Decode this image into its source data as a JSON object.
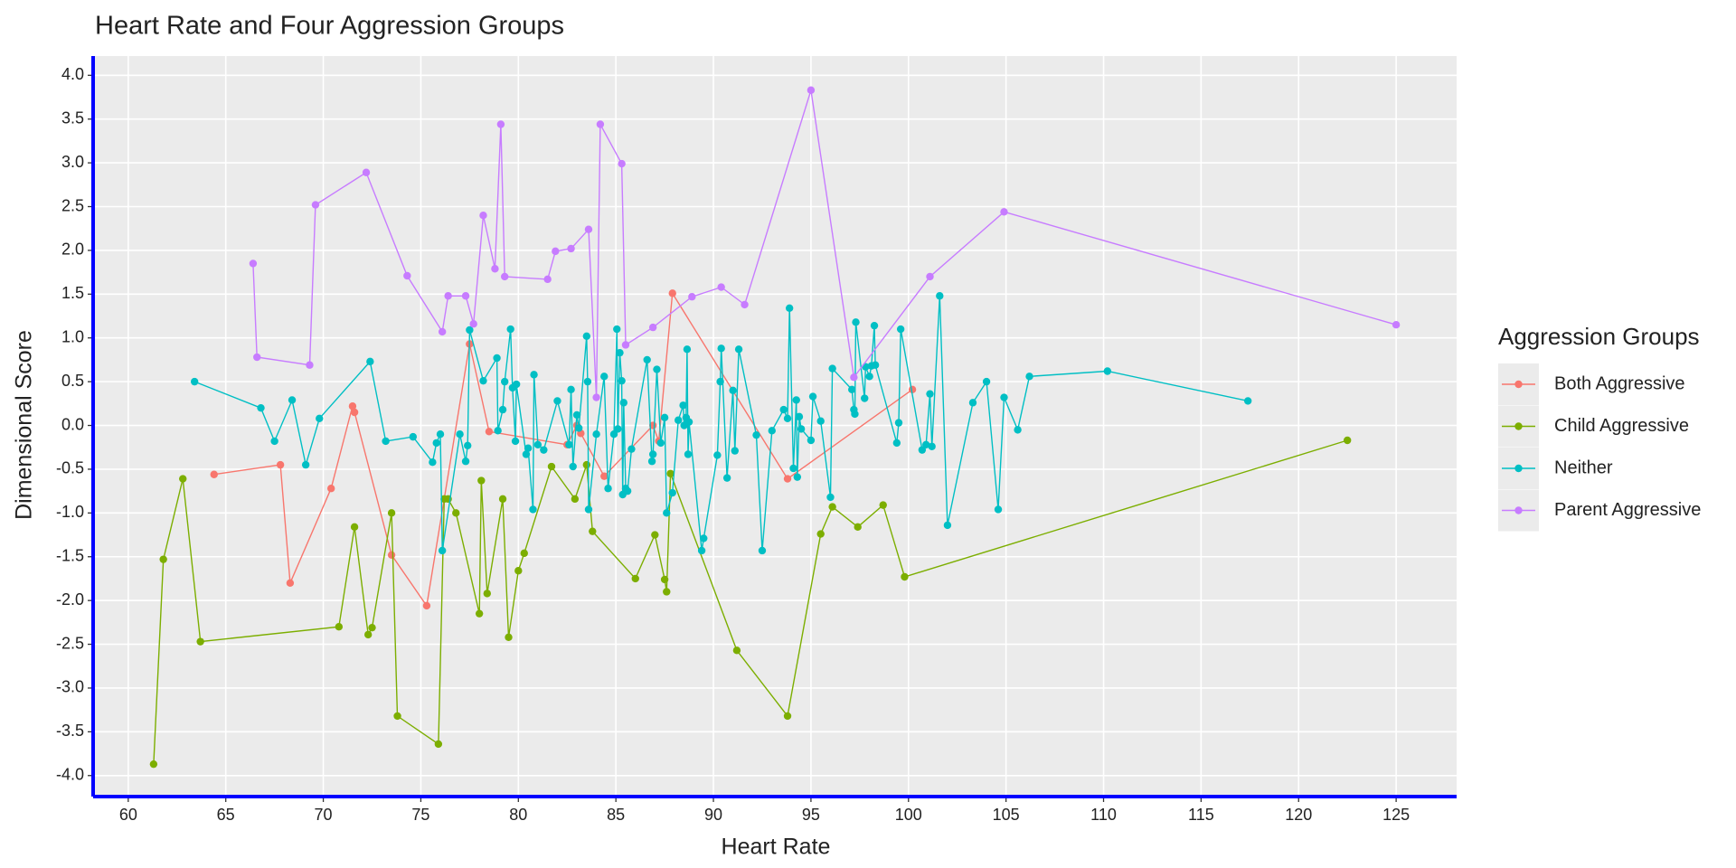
{
  "chart_data": {
    "type": "line",
    "title": "Heart Rate and Four Aggression Groups",
    "x_label": "Heart Rate",
    "y_label": "Dimensional Score",
    "legend_title": "Aggression Groups",
    "legend_position": "right",
    "xlim": [
      58.2,
      128.1
    ],
    "ylim": [
      -4.24,
      4.22
    ],
    "xticks": [
      60,
      65,
      70,
      75,
      80,
      85,
      90,
      95,
      100,
      105,
      110,
      115,
      120,
      125
    ],
    "yticks": [
      {
        "value": -4,
        "label": "-4.0"
      },
      -3.5,
      {
        "value": -3,
        "label": "-3.0"
      },
      -2.5,
      {
        "value": -2,
        "label": "-2.0"
      },
      -1.5,
      {
        "value": -1,
        "label": "-1.0"
      },
      -0.5,
      {
        "value": 0,
        "label": "0.0"
      },
      0.5,
      {
        "value": 1,
        "label": "1.0"
      },
      1.5,
      {
        "value": 2,
        "label": "2.0"
      },
      2.5,
      {
        "value": 3,
        "label": "3.0"
      },
      3.5,
      {
        "value": 4,
        "label": "4.0"
      }
    ],
    "grid": true,
    "axis_line_color": "#0000ff",
    "series": [
      {
        "name": "Both Aggressive",
        "color": "#F8766D",
        "x": [
          64.4,
          67.8,
          68.3,
          70.4,
          71.5,
          71.6,
          73.5,
          75.3,
          77.5,
          78.5,
          82.5,
          83.0,
          83.2,
          84.4,
          86.9,
          87.2,
          87.9,
          93.8,
          100.2
        ],
        "values": [
          -0.56,
          -0.45,
          -1.8,
          -0.72,
          0.22,
          0.15,
          -1.48,
          -2.06,
          0.93,
          -0.07,
          -0.22,
          0.0,
          -0.09,
          -0.58,
          0.0,
          -0.18,
          1.51,
          -0.61,
          0.41
        ]
      },
      {
        "name": "Child Aggressive",
        "color": "#7CAE00",
        "x": [
          61.3,
          61.8,
          62.8,
          63.7,
          70.8,
          71.6,
          72.3,
          72.5,
          73.5,
          73.8,
          75.9,
          76.2,
          76.4,
          76.8,
          78.0,
          78.1,
          78.4,
          79.2,
          79.5,
          80.0,
          80.3,
          81.7,
          82.9,
          83.5,
          83.8,
          86.0,
          87.0,
          87.5,
          87.6,
          87.8,
          91.2,
          93.8,
          95.5,
          96.1,
          97.4,
          98.7,
          99.8,
          122.5
        ],
        "values": [
          -3.87,
          -1.53,
          -0.61,
          -2.47,
          -2.3,
          -1.16,
          -2.39,
          -2.31,
          -1.0,
          -3.32,
          -3.64,
          -0.84,
          -0.84,
          -1.0,
          -2.15,
          -0.63,
          -1.92,
          -0.84,
          -2.42,
          -1.66,
          -1.46,
          -0.47,
          -0.84,
          -0.45,
          -1.21,
          -1.75,
          -1.25,
          -1.76,
          -1.9,
          -0.55,
          -2.57,
          -3.32,
          -1.24,
          -0.93,
          -1.16,
          -0.91,
          -1.73,
          -0.17
        ]
      },
      {
        "name": "Neither",
        "color": "#00BFC4",
        "x": [
          63.4,
          66.8,
          67.5,
          68.4,
          69.1,
          69.8,
          72.4,
          73.2,
          74.6,
          75.6,
          75.8,
          76.0,
          76.1,
          77.0,
          77.3,
          77.4,
          77.5,
          78.2,
          78.9,
          78.95,
          79.2,
          79.3,
          79.6,
          79.7,
          79.85,
          79.9,
          80.4,
          80.5,
          80.75,
          80.8,
          81.0,
          81.3,
          82.0,
          82.6,
          82.7,
          82.8,
          83.0,
          83.1,
          83.5,
          83.55,
          83.6,
          84.0,
          84.4,
          84.6,
          84.9,
          85.05,
          85.1,
          85.2,
          85.3,
          85.35,
          85.4,
          85.5,
          85.6,
          85.8,
          86.6,
          86.85,
          86.9,
          87.1,
          87.3,
          87.5,
          87.6,
          87.9,
          88.2,
          88.45,
          88.5,
          88.6,
          88.65,
          88.7,
          88.75,
          89.4,
          89.5,
          90.2,
          90.35,
          90.4,
          90.7,
          91.0,
          91.1,
          91.3,
          92.2,
          92.5,
          93.0,
          93.6,
          93.8,
          93.9,
          94.1,
          94.25,
          94.3,
          94.4,
          94.5,
          95.0,
          95.1,
          95.5,
          96.0,
          96.1,
          97.1,
          97.2,
          97.25,
          97.3,
          97.75,
          97.8,
          98.0,
          98.1,
          98.25,
          98.3,
          99.4,
          99.5,
          99.6,
          100.7,
          100.9,
          101.1,
          101.2,
          101.6,
          102.0,
          103.3,
          104.0,
          104.6,
          104.9,
          105.6,
          106.2,
          110.2,
          117.4
        ],
        "values": [
          0.5,
          0.2,
          -0.18,
          0.29,
          -0.45,
          0.08,
          0.73,
          -0.18,
          -0.13,
          -0.42,
          -0.2,
          -0.1,
          -1.43,
          -0.1,
          -0.41,
          -0.23,
          1.09,
          0.51,
          0.77,
          -0.06,
          0.18,
          0.5,
          1.1,
          0.43,
          -0.18,
          0.47,
          -0.33,
          -0.26,
          -0.96,
          0.58,
          -0.22,
          -0.28,
          0.28,
          -0.22,
          0.41,
          -0.47,
          0.12,
          -0.03,
          1.02,
          0.5,
          -0.96,
          -0.1,
          0.56,
          -0.72,
          -0.1,
          1.1,
          -0.04,
          0.83,
          0.51,
          -0.79,
          0.26,
          -0.72,
          -0.75,
          -0.27,
          0.75,
          -0.41,
          -0.33,
          0.64,
          -0.2,
          0.09,
          -1.0,
          -0.77,
          0.06,
          0.23,
          0.0,
          0.09,
          0.87,
          -0.33,
          0.04,
          -1.43,
          -1.29,
          -0.34,
          0.5,
          0.88,
          -0.6,
          0.4,
          -0.29,
          0.87,
          -0.11,
          -1.43,
          -0.06,
          0.18,
          0.08,
          1.34,
          -0.49,
          0.29,
          -0.59,
          0.1,
          -0.04,
          -0.17,
          0.33,
          0.05,
          -0.82,
          0.65,
          0.41,
          0.18,
          0.13,
          1.18,
          0.31,
          0.67,
          0.56,
          0.68,
          1.14,
          0.69,
          -0.2,
          0.03,
          1.1,
          -0.28,
          -0.22,
          0.36,
          -0.24,
          1.48,
          -1.14,
          0.26,
          0.5,
          -0.96,
          0.32,
          -0.05,
          0.56,
          0.62,
          0.28
        ]
      },
      {
        "name": "Parent Aggressive",
        "color": "#C77CFF",
        "x": [
          66.4,
          66.6,
          69.3,
          69.6,
          72.2,
          74.3,
          76.1,
          76.4,
          77.3,
          77.7,
          78.2,
          78.8,
          79.1,
          79.3,
          81.5,
          81.9,
          82.7,
          83.6,
          84.0,
          84.2,
          85.3,
          85.5,
          86.9,
          88.9,
          90.4,
          91.6,
          95.0,
          97.2,
          101.1,
          104.9,
          125.0
        ],
        "values": [
          1.85,
          0.78,
          0.69,
          2.52,
          2.89,
          1.71,
          1.07,
          1.48,
          1.48,
          1.16,
          2.4,
          1.79,
          3.44,
          1.7,
          1.67,
          1.99,
          2.02,
          2.24,
          0.32,
          3.44,
          2.99,
          0.92,
          1.12,
          1.47,
          1.58,
          1.38,
          3.83,
          0.55,
          1.7,
          2.44,
          1.15
        ]
      }
    ]
  }
}
